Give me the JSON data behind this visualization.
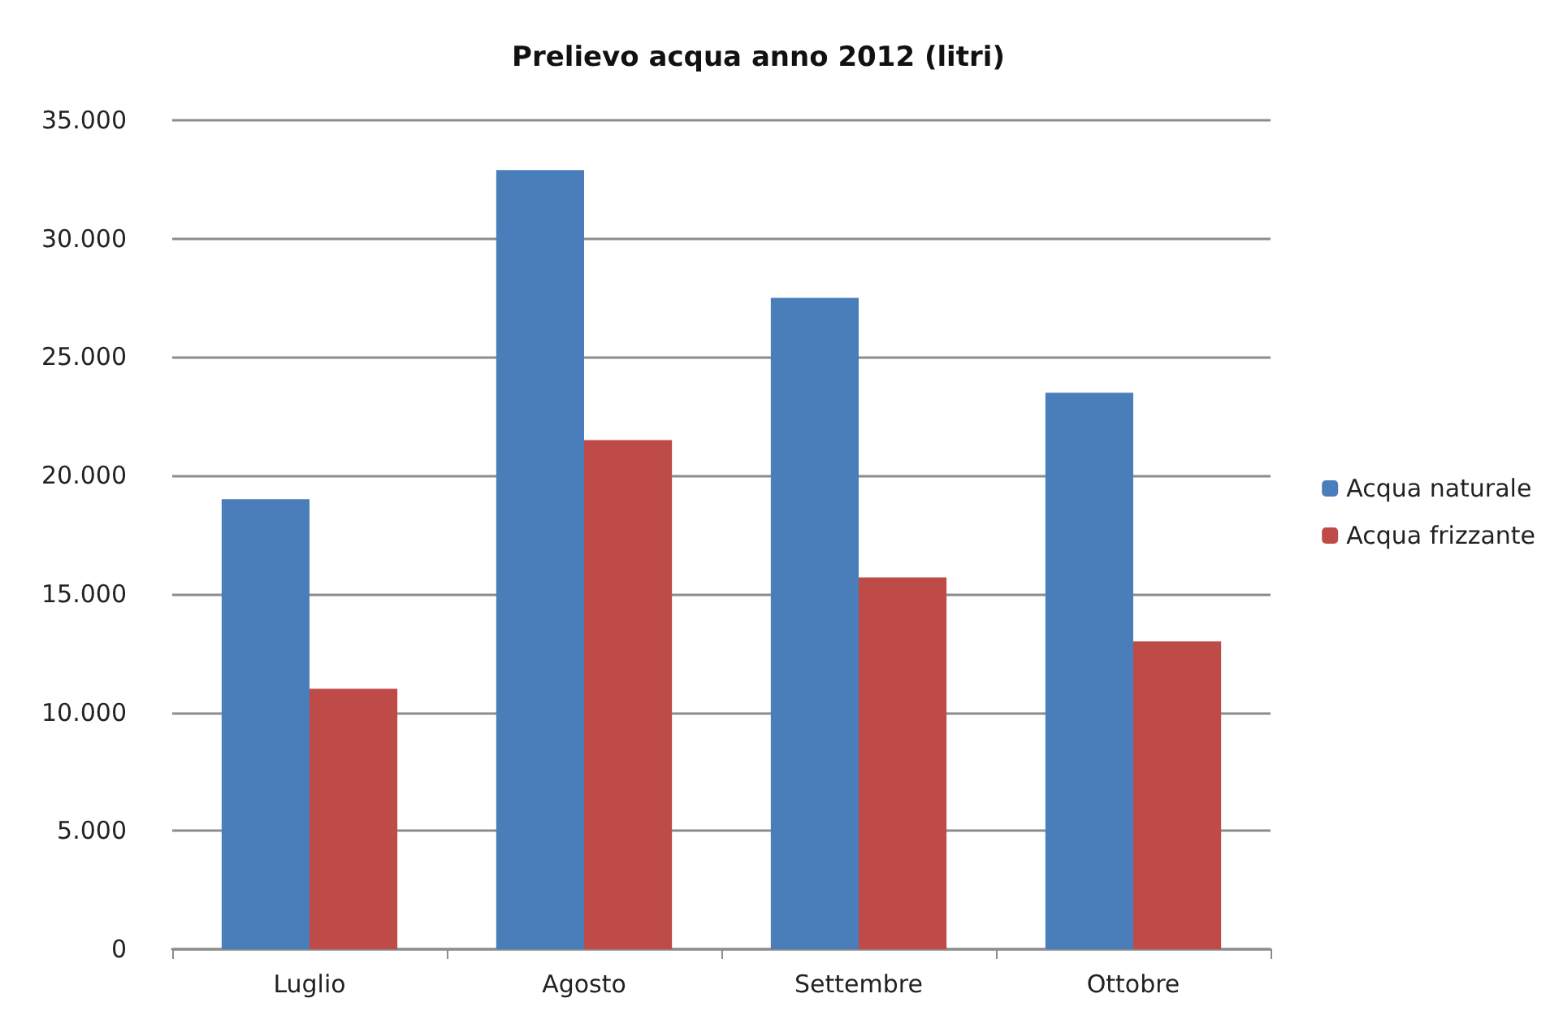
{
  "chart_data": {
    "type": "bar",
    "title": "Prelievo acqua anno 2012 (litri)",
    "categories": [
      "Luglio",
      "Agosto",
      "Settembre",
      "Ottobre"
    ],
    "series": [
      {
        "name": "Acqua naturale",
        "color": "#4a7ebb",
        "values": [
          19000,
          32900,
          27500,
          23500
        ]
      },
      {
        "name": "Acqua frizzante",
        "color": "#be4b48",
        "values": [
          11000,
          21500,
          15700,
          13000
        ]
      }
    ],
    "ylim": [
      0,
      35000
    ],
    "yticks": [
      {
        "value": 0,
        "label": "0"
      },
      {
        "value": 5000,
        "label": "5.000"
      },
      {
        "value": 10000,
        "label": "10.000"
      },
      {
        "value": 15000,
        "label": "15.000"
      },
      {
        "value": 20000,
        "label": "20.000"
      },
      {
        "value": 25000,
        "label": "25.000"
      },
      {
        "value": 30000,
        "label": "30.000"
      },
      {
        "value": 35000,
        "label": "35.000"
      }
    ],
    "grid": "y",
    "legend": "right"
  }
}
